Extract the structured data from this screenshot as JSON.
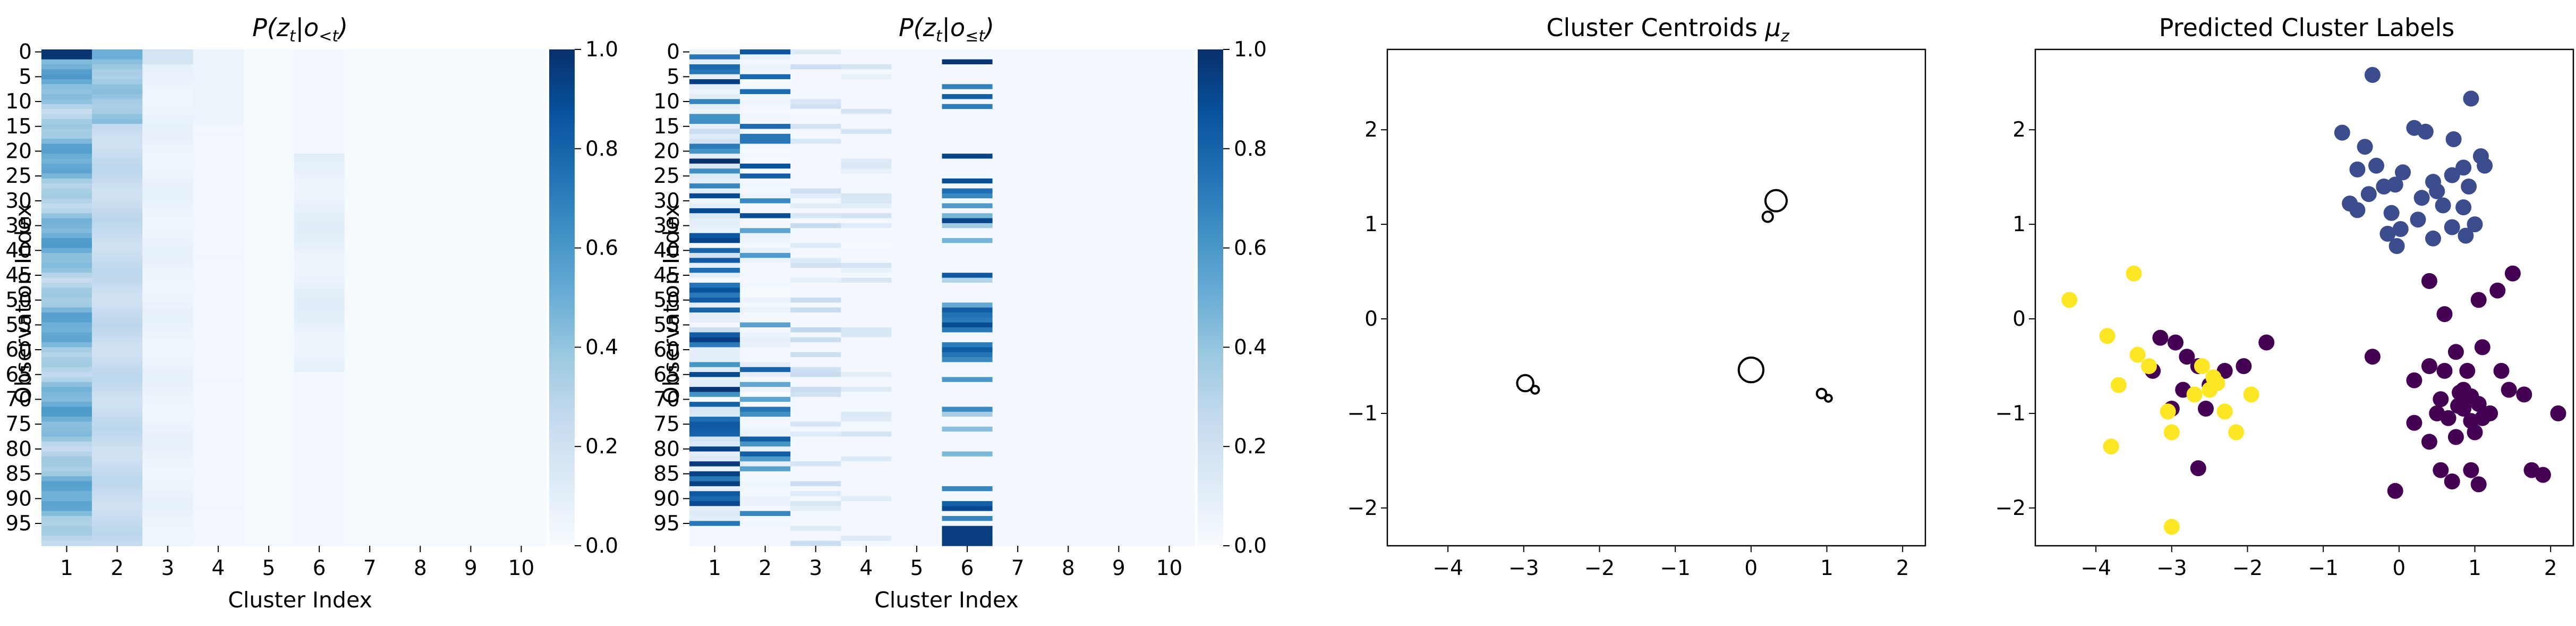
{
  "chart_data": [
    {
      "type": "heatmap",
      "title": "P(z_t | o_<t)",
      "title_main": "P(z",
      "title_sub": "t",
      "title_mid": "|o",
      "title_sub2": "<t",
      "title_end": ")",
      "xlabel": "Cluster Index",
      "ylabel": "Observation Index",
      "x_ticks": [
        "1",
        "2",
        "3",
        "4",
        "5",
        "6",
        "7",
        "8",
        "9",
        "10"
      ],
      "y_ticks": [
        "0",
        "5",
        "10",
        "15",
        "20",
        "25",
        "30",
        "35",
        "40",
        "45",
        "50",
        "55",
        "60",
        "65",
        "70",
        "75",
        "80",
        "85",
        "90",
        "95"
      ],
      "n_rows": 100,
      "colorbar": {
        "min": 0.0,
        "max": 1.0,
        "ticks": [
          "0.0",
          "0.2",
          "0.4",
          "0.6",
          "0.8",
          "1.0"
        ]
      },
      "columns_mean": [
        0.55,
        0.3,
        0.08,
        0.04,
        0.01,
        0.05,
        0.01,
        0.01,
        0.01,
        0.01
      ]
    },
    {
      "type": "heatmap",
      "title": "P(z_t | o_≤t)",
      "title_main": "P(z",
      "title_sub": "t",
      "title_mid": "|o",
      "title_sub2": "≤t",
      "title_end": ")",
      "xlabel": "Cluster Index",
      "ylabel": "Observation Index",
      "x_ticks": [
        "1",
        "2",
        "3",
        "4",
        "5",
        "6",
        "7",
        "8",
        "9",
        "10"
      ],
      "y_ticks": [
        "0",
        "5",
        "10",
        "15",
        "20",
        "25",
        "30",
        "35",
        "40",
        "45",
        "50",
        "55",
        "60",
        "65",
        "70",
        "75",
        "80",
        "85",
        "90",
        "95"
      ],
      "n_rows": 100,
      "colorbar": {
        "min": 0.0,
        "max": 1.0,
        "ticks": [
          "0.0",
          "0.2",
          "0.4",
          "0.6",
          "0.8",
          "1.0"
        ]
      }
    },
    {
      "type": "scatter",
      "title": "Cluster Centroids μz",
      "title_main": "Cluster Centroids ",
      "title_mu": "μ",
      "title_sub": "z",
      "x_ticks": [
        "−4",
        "−3",
        "−2",
        "−1",
        "0",
        "1",
        "2"
      ],
      "y_ticks": [
        "−2",
        "−1",
        "0",
        "1",
        "2"
      ],
      "xlim": [
        -4.8,
        2.3
      ],
      "ylim": [
        -2.4,
        2.85
      ],
      "centroids": [
        {
          "x": 0.33,
          "y": 1.25,
          "size": 1.0
        },
        {
          "x": 0.22,
          "y": 1.08,
          "size": 0.35
        },
        {
          "x": 0.0,
          "y": -0.54,
          "size": 1.2
        },
        {
          "x": -2.98,
          "y": -0.68,
          "size": 0.7
        },
        {
          "x": -2.85,
          "y": -0.75,
          "size": 0.2
        },
        {
          "x": 0.93,
          "y": -0.79,
          "size": 0.3
        },
        {
          "x": 1.02,
          "y": -0.84,
          "size": 0.15
        }
      ]
    },
    {
      "type": "scatter",
      "title": "Predicted Cluster Labels",
      "x_ticks": [
        "−4",
        "−3",
        "−2",
        "−1",
        "0",
        "1",
        "2"
      ],
      "y_ticks": [
        "−2",
        "−1",
        "0",
        "1",
        "2"
      ],
      "xlim": [
        -4.8,
        2.3
      ],
      "ylim": [
        -2.4,
        2.85
      ],
      "colors": {
        "blue": "#3b4d8c",
        "purple": "#440154",
        "yellow": "#fde725"
      },
      "points": {
        "blue": [
          [
            -0.35,
            2.58
          ],
          [
            0.95,
            2.33
          ],
          [
            -0.75,
            1.97
          ],
          [
            0.2,
            2.02
          ],
          [
            0.35,
            1.98
          ],
          [
            0.72,
            1.9
          ],
          [
            1.08,
            1.72
          ],
          [
            1.13,
            1.62
          ],
          [
            -0.45,
            1.82
          ],
          [
            -0.3,
            1.62
          ],
          [
            0.05,
            1.55
          ],
          [
            0.45,
            1.45
          ],
          [
            0.7,
            1.52
          ],
          [
            0.85,
            1.6
          ],
          [
            -0.55,
            1.58
          ],
          [
            -0.2,
            1.4
          ],
          [
            -0.05,
            1.42
          ],
          [
            0.5,
            1.35
          ],
          [
            0.58,
            1.2
          ],
          [
            0.92,
            1.4
          ],
          [
            0.85,
            1.18
          ],
          [
            -0.65,
            1.22
          ],
          [
            -0.4,
            1.32
          ],
          [
            -0.1,
            1.12
          ],
          [
            0.25,
            1.05
          ],
          [
            0.7,
            0.97
          ],
          [
            1.0,
            1.0
          ],
          [
            -0.55,
            1.15
          ],
          [
            0.02,
            0.95
          ],
          [
            0.45,
            0.85
          ],
          [
            -0.15,
            0.9
          ],
          [
            -0.03,
            0.77
          ],
          [
            0.88,
            0.88
          ],
          [
            0.3,
            1.28
          ]
        ],
        "purple": [
          [
            1.5,
            0.48
          ],
          [
            1.3,
            0.3
          ],
          [
            0.4,
            0.4
          ],
          [
            1.05,
            0.2
          ],
          [
            0.6,
            0.05
          ],
          [
            -0.35,
            -0.4
          ],
          [
            0.4,
            -0.5
          ],
          [
            0.75,
            -0.35
          ],
          [
            0.9,
            -0.55
          ],
          [
            1.1,
            -0.3
          ],
          [
            1.35,
            -0.55
          ],
          [
            0.6,
            -0.55
          ],
          [
            0.2,
            -0.65
          ],
          [
            0.55,
            -0.85
          ],
          [
            0.8,
            -0.78
          ],
          [
            0.95,
            -0.82
          ],
          [
            1.05,
            -0.9
          ],
          [
            1.2,
            -1.0
          ],
          [
            1.45,
            -0.75
          ],
          [
            1.65,
            -0.8
          ],
          [
            0.5,
            -1.0
          ],
          [
            0.65,
            -1.05
          ],
          [
            0.85,
            -0.95
          ],
          [
            0.95,
            -1.08
          ],
          [
            1.1,
            -1.05
          ],
          [
            0.75,
            -1.25
          ],
          [
            1.0,
            -1.2
          ],
          [
            0.2,
            -1.1
          ],
          [
            0.4,
            -1.3
          ],
          [
            2.1,
            -1.0
          ],
          [
            0.55,
            -1.6
          ],
          [
            0.95,
            -1.6
          ],
          [
            1.05,
            -1.75
          ],
          [
            1.75,
            -1.6
          ],
          [
            1.9,
            -1.65
          ],
          [
            0.7,
            -1.72
          ],
          [
            -0.05,
            -1.82
          ],
          [
            0.85,
            -0.75
          ],
          [
            0.88,
            -0.88
          ],
          [
            0.78,
            -0.92
          ],
          [
            -3.15,
            -0.2
          ],
          [
            -2.95,
            -0.25
          ],
          [
            -1.75,
            -0.25
          ],
          [
            -2.8,
            -0.4
          ],
          [
            -3.25,
            -0.55
          ],
          [
            -2.65,
            -0.5
          ],
          [
            -2.3,
            -0.55
          ],
          [
            -2.05,
            -0.5
          ],
          [
            -2.5,
            -0.7
          ],
          [
            -2.85,
            -0.75
          ],
          [
            -3.0,
            -0.95
          ],
          [
            -2.55,
            -0.95
          ],
          [
            -2.65,
            -1.58
          ]
        ],
        "yellow": [
          [
            -4.35,
            0.2
          ],
          [
            -3.5,
            0.48
          ],
          [
            -3.85,
            -0.18
          ],
          [
            -3.45,
            -0.38
          ],
          [
            -3.3,
            -0.5
          ],
          [
            -2.6,
            -0.5
          ],
          [
            -2.45,
            -0.62
          ],
          [
            -2.5,
            -0.75
          ],
          [
            -3.7,
            -0.7
          ],
          [
            -2.7,
            -0.8
          ],
          [
            -1.95,
            -0.8
          ],
          [
            -2.3,
            -0.98
          ],
          [
            -3.05,
            -0.98
          ],
          [
            -3.0,
            -1.2
          ],
          [
            -2.15,
            -1.2
          ],
          [
            -3.8,
            -1.35
          ],
          [
            -3.0,
            -2.2
          ],
          [
            -2.4,
            -0.68
          ]
        ]
      }
    }
  ]
}
